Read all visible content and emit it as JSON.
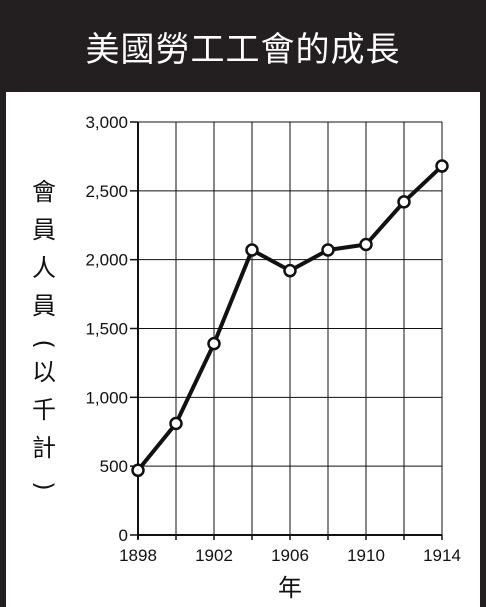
{
  "title": "美國勞工工會的成長",
  "chart_data": {
    "type": "line",
    "title": "美國勞工工會的成長",
    "xlabel": "年",
    "ylabel": "會員人員(以千計)",
    "x": [
      1898,
      1900,
      1902,
      1904,
      1906,
      1908,
      1910,
      1912,
      1914
    ],
    "series": [
      {
        "name": "",
        "values": [
          470,
          810,
          1390,
          2070,
          1920,
          2070,
          2110,
          2420,
          2680
        ]
      }
    ],
    "xticks": [
      "1898",
      "1902",
      "1906",
      "1910",
      "1914"
    ],
    "yticks": [
      "0",
      "500",
      "1,000",
      "1,500",
      "2,000",
      "2,500",
      "3,000"
    ],
    "xlim": [
      1898,
      1914
    ],
    "ylim": [
      0,
      3000
    ],
    "grid": true,
    "colors": {
      "line": "#111111",
      "marker_fill": "#ffffff",
      "grid": "#111111",
      "header_bg": "#231f20",
      "header_text": "#ffffff"
    }
  }
}
